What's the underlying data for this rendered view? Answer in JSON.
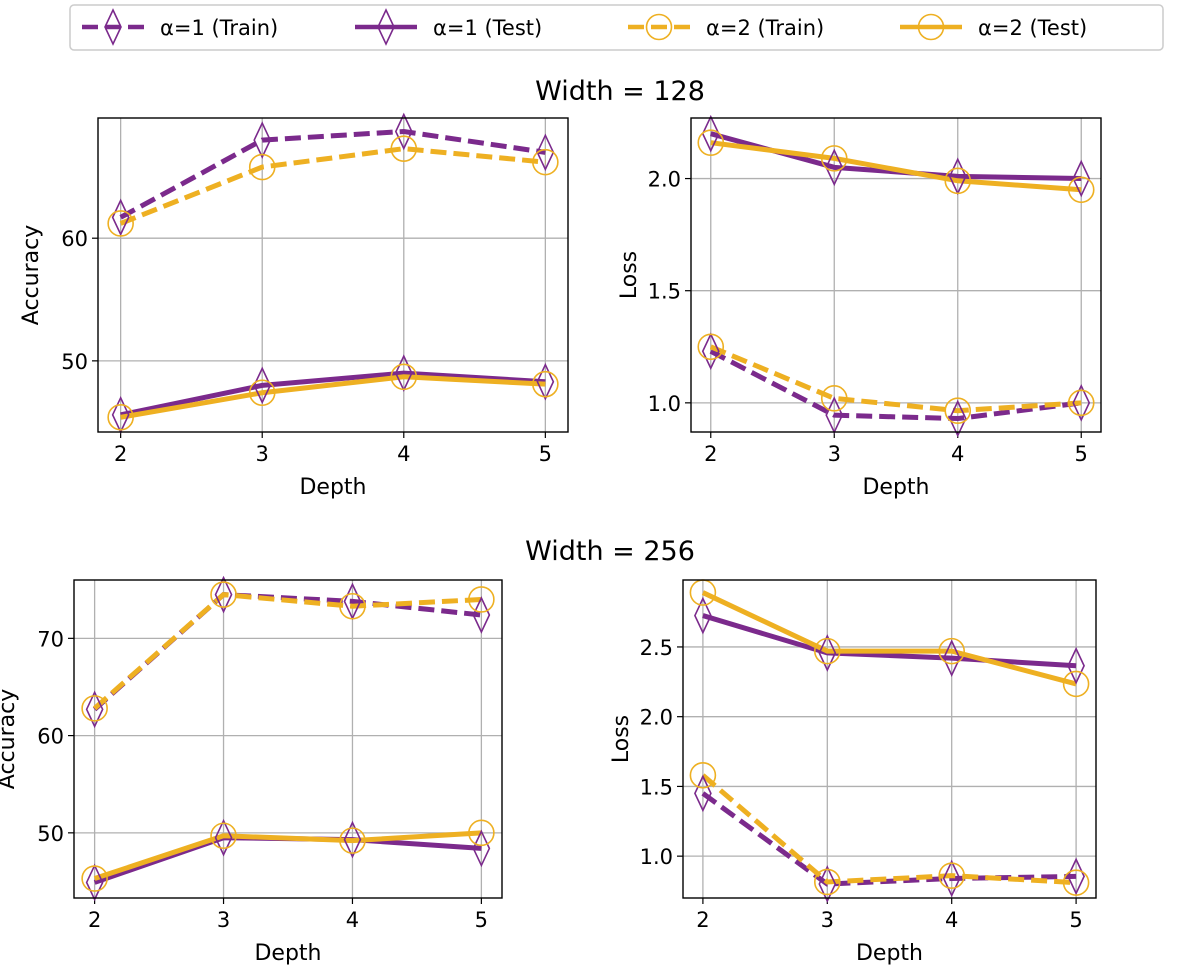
{
  "colors": {
    "alpha1": "#7b2a8c",
    "alpha2": "#eeb022",
    "grid": "#b0b0b0"
  },
  "legend": {
    "placement": "top-center",
    "entries": [
      {
        "label": "α=1 (Train)",
        "color": "#7b2a8c",
        "dash": "dashed",
        "marker": "thin-diamond"
      },
      {
        "label": "α=1 (Test)",
        "color": "#7b2a8c",
        "dash": "solid",
        "marker": "thin-diamond"
      },
      {
        "label": "α=2 (Train)",
        "color": "#eeb022",
        "dash": "dashed",
        "marker": "circle"
      },
      {
        "label": "α=2 (Test)",
        "color": "#eeb022",
        "dash": "solid",
        "marker": "circle"
      }
    ]
  },
  "group_titles": [
    "Width = 128",
    "Width = 256"
  ],
  "chart_data": [
    {
      "type": "line",
      "group": "Width = 128",
      "xlabel": "Depth",
      "ylabel": "Accuracy",
      "grid": true,
      "x": [
        2,
        3,
        4,
        5
      ],
      "xticks": [
        "2",
        "3",
        "4",
        "5"
      ],
      "xlim": [
        1.84,
        5.16
      ],
      "yticks": [
        "50",
        "60"
      ],
      "ylim": [
        44.2,
        69.8
      ],
      "series": [
        {
          "name": "α=1 (Train)",
          "values": [
            61.7,
            68.0,
            68.7,
            67.0
          ]
        },
        {
          "name": "α=1 (Test)",
          "values": [
            45.6,
            48.0,
            49.0,
            48.3
          ]
        },
        {
          "name": "α=2 (Train)",
          "values": [
            61.2,
            65.8,
            67.3,
            66.2
          ]
        },
        {
          "name": "α=2 (Test)",
          "values": [
            45.4,
            47.4,
            48.7,
            48.1
          ]
        }
      ]
    },
    {
      "type": "line",
      "group": "Width = 128",
      "xlabel": "Depth",
      "ylabel": "Loss",
      "grid": true,
      "x": [
        2,
        3,
        4,
        5
      ],
      "xticks": [
        "2",
        "3",
        "4",
        "5"
      ],
      "xlim": [
        1.84,
        5.16
      ],
      "yticks": [
        "1.0",
        "1.5",
        "2.0"
      ],
      "ylim": [
        0.87,
        2.27
      ],
      "series": [
        {
          "name": "α=1 (Train)",
          "values": [
            1.23,
            0.945,
            0.93,
            1.0
          ]
        },
        {
          "name": "α=1 (Test)",
          "values": [
            2.2,
            2.05,
            2.01,
            2.0
          ]
        },
        {
          "name": "α=2 (Train)",
          "values": [
            1.25,
            1.02,
            0.965,
            1.0
          ]
        },
        {
          "name": "α=2 (Test)",
          "values": [
            2.16,
            2.09,
            1.99,
            1.95
          ]
        }
      ]
    },
    {
      "type": "line",
      "group": "Width = 256",
      "xlabel": "Depth",
      "ylabel": "Accuracy",
      "grid": true,
      "x": [
        2,
        3,
        4,
        5
      ],
      "xticks": [
        "2",
        "3",
        "4",
        "5"
      ],
      "xlim": [
        1.84,
        5.16
      ],
      "yticks": [
        "50",
        "60",
        "70"
      ],
      "ylim": [
        43.3,
        76.0
      ],
      "series": [
        {
          "name": "α=1 (Train)",
          "values": [
            62.7,
            74.5,
            73.8,
            72.4
          ]
        },
        {
          "name": "α=1 (Test)",
          "values": [
            44.9,
            49.5,
            49.3,
            48.4
          ]
        },
        {
          "name": "α=2 (Train)",
          "values": [
            62.8,
            74.5,
            73.3,
            74.0
          ]
        },
        {
          "name": "α=2 (Test)",
          "values": [
            45.3,
            49.7,
            49.2,
            50.0
          ]
        }
      ]
    },
    {
      "type": "line",
      "group": "Width = 256",
      "xlabel": "Depth",
      "ylabel": "Loss",
      "grid": true,
      "x": [
        2,
        3,
        4,
        5
      ],
      "xticks": [
        "2",
        "3",
        "4",
        "5"
      ],
      "xlim": [
        1.84,
        5.16
      ],
      "yticks": [
        "1.0",
        "1.5",
        "2.0",
        "2.5"
      ],
      "ylim": [
        0.7,
        2.98
      ],
      "series": [
        {
          "name": "α=1 (Train)",
          "values": [
            1.45,
            0.8,
            0.84,
            0.855
          ]
        },
        {
          "name": "α=1 (Test)",
          "values": [
            2.725,
            2.457,
            2.42,
            2.365
          ]
        },
        {
          "name": "α=2 (Train)",
          "values": [
            1.58,
            0.815,
            0.86,
            0.81
          ]
        },
        {
          "name": "α=2 (Test)",
          "values": [
            2.89,
            2.47,
            2.47,
            2.235
          ]
        }
      ]
    }
  ]
}
